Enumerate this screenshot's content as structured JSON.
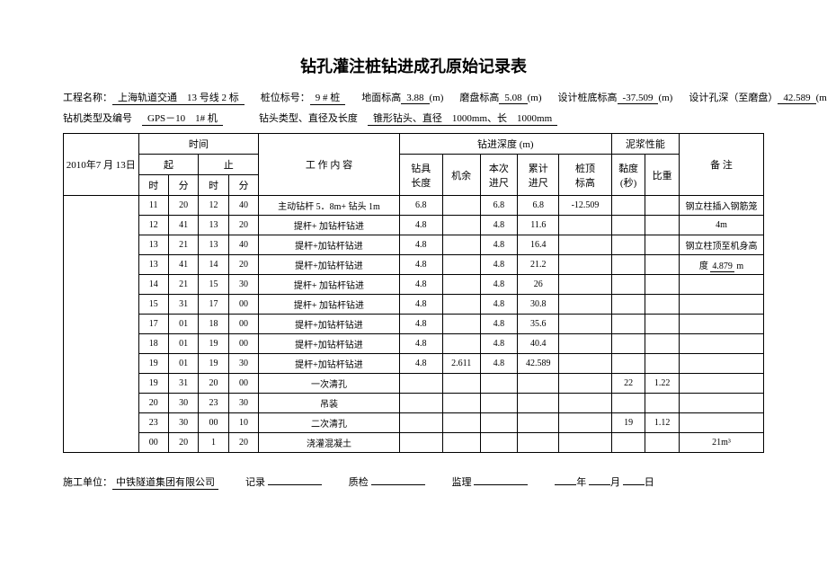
{
  "title": "钻孔灌注桩钻进成孔原始记录表",
  "meta1": {
    "project_label": "工程名称：",
    "project": "上海轨道交通　13 号线 2 标",
    "pile_label": "桩位标号：",
    "pile": "9 # 桩",
    "ground_label": "地面标高",
    "ground": "3.88",
    "unit_m": "(m)",
    "plate_label": "磨盘标高",
    "plate": "5.08",
    "design_bottom_label": "设计桩底标高",
    "design_bottom": "-37.509",
    "design_depth_label": "设计孔深（至磨盘）",
    "design_depth": "42.589"
  },
  "meta2": {
    "drill_label": "钻机类型及编号",
    "drill": "GPS－10　1# 机",
    "head_label": "钻头类型、直径及长度",
    "head": "锥形钻头、直径　1000mm、长　1000mm"
  },
  "headers": {
    "date": "2010年7 月 13日",
    "time": "时间",
    "start": "起",
    "stop": "止",
    "hour": "时",
    "minute": "分",
    "work": "工 作 内 容",
    "depth": "钻进深度 (m)",
    "tool_len": "钻具\n长度",
    "left": "机余",
    "this": "本次\n进尺",
    "total": "累计\n进尺",
    "top": "桩顶\n标高",
    "slurry": "泥浆性能",
    "visc": "黏度\n(秒)",
    "sg": "比重",
    "remark": "备 注"
  },
  "rows": [
    {
      "sh": "11",
      "sm": "20",
      "eh": "12",
      "em": "40",
      "work": "主动钻杆 5．8m+ 钻头 1m",
      "len": "6.8",
      "left": "",
      "this": "6.8",
      "tot": "6.8",
      "top": "-12.509",
      "v": "",
      "sg": "",
      "rem": "钢立柱插入钢筋笼"
    },
    {
      "sh": "12",
      "sm": "41",
      "eh": "13",
      "em": "20",
      "work": "提杆+ 加钻杆钻进",
      "len": "4.8",
      "left": "",
      "this": "4.8",
      "tot": "11.6",
      "top": "",
      "v": "",
      "sg": "",
      "rem": "4m"
    },
    {
      "sh": "13",
      "sm": "21",
      "eh": "13",
      "em": "40",
      "work": "提杆+加钻杆钻进",
      "len": "4.8",
      "left": "",
      "this": "4.8",
      "tot": "16.4",
      "top": "",
      "v": "",
      "sg": "",
      "rem": "钢立柱顶至机身高"
    },
    {
      "sh": "13",
      "sm": "41",
      "eh": "14",
      "em": "20",
      "work": "提杆+加钻杆钻进",
      "len": "4.8",
      "left": "",
      "this": "4.8",
      "tot": "21.2",
      "top": "",
      "v": "",
      "sg": "",
      "rem": "度 <span class=\"remark-u\">4.879</span> m"
    },
    {
      "sh": "14",
      "sm": "21",
      "eh": "15",
      "em": "30",
      "work": "提杆+ 加钻杆钻进",
      "len": "4.8",
      "left": "",
      "this": "4.8",
      "tot": "26",
      "top": "",
      "v": "",
      "sg": "",
      "rem": ""
    },
    {
      "sh": "15",
      "sm": "31",
      "eh": "17",
      "em": "00",
      "work": "提杆+ 加钻杆钻进",
      "len": "4.8",
      "left": "",
      "this": "4.8",
      "tot": "30.8",
      "top": "",
      "v": "",
      "sg": "",
      "rem": ""
    },
    {
      "sh": "17",
      "sm": "01",
      "eh": "18",
      "em": "00",
      "work": "提杆+加钻杆钻进",
      "len": "4.8",
      "left": "",
      "this": "4.8",
      "tot": "35.6",
      "top": "",
      "v": "",
      "sg": "",
      "rem": ""
    },
    {
      "sh": "18",
      "sm": "01",
      "eh": "19",
      "em": "00",
      "work": "提杆+加钻杆钻进",
      "len": "4.8",
      "left": "",
      "this": "4.8",
      "tot": "40.4",
      "top": "",
      "v": "",
      "sg": "",
      "rem": ""
    },
    {
      "sh": "19",
      "sm": "01",
      "eh": "19",
      "em": "30",
      "work": "提杆+加钻杆钻进",
      "len": "4.8",
      "left": "2.611",
      "this": "4.8",
      "tot": "42.589",
      "top": "",
      "v": "",
      "sg": "",
      "rem": ""
    },
    {
      "sh": "19",
      "sm": "31",
      "eh": "20",
      "em": "00",
      "work": "一次清孔",
      "len": "",
      "left": "",
      "this": "",
      "tot": "",
      "top": "",
      "v": "22",
      "sg": "1.22",
      "rem": ""
    },
    {
      "sh": "20",
      "sm": "30",
      "eh": "23",
      "em": "30",
      "work": "吊装",
      "len": "",
      "left": "",
      "this": "",
      "tot": "",
      "top": "",
      "v": "",
      "sg": "",
      "rem": ""
    },
    {
      "sh": "23",
      "sm": "30",
      "eh": "00",
      "em": "10",
      "work": "二次清孔",
      "len": "",
      "left": "",
      "this": "",
      "tot": "",
      "top": "",
      "v": "19",
      "sg": "1.12",
      "rem": ""
    },
    {
      "sh": "00",
      "sm": "20",
      "eh": "1",
      "em": "20",
      "work": "浇灌混凝土",
      "len": "",
      "left": "",
      "this": "",
      "tot": "",
      "top": "",
      "v": "",
      "sg": "",
      "rem": "21m³"
    }
  ],
  "footer": {
    "org_label": "施工单位：",
    "org": "中铁隧道集团有限公司",
    "rec": "记录",
    "qc": "质检",
    "sup": "监理",
    "y": "年",
    "m": "月",
    "d": "日"
  },
  "col_widths": [
    "80",
    "32",
    "32",
    "32",
    "32",
    "150",
    "46",
    "40",
    "40",
    "44",
    "56",
    "36",
    "36",
    "90"
  ]
}
